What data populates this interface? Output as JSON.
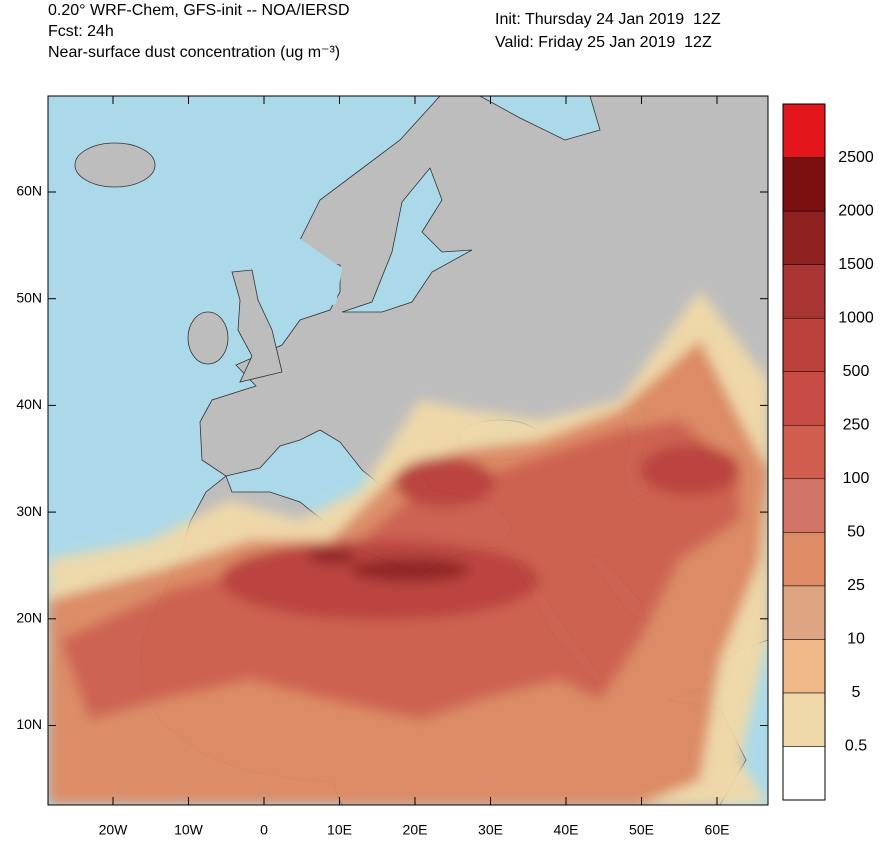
{
  "header": {
    "title": "0.20° WRF-Chem, GFS-init -- NOA/IERSD",
    "forecast": "Fcst: 24h",
    "variable": "Near-surface dust concentration (ug m⁻³)",
    "init": "Init: Thursday 24 Jan 2019  12Z",
    "valid": "Valid: Friday 25 Jan 2019  12Z"
  },
  "map": {
    "lon_ticks": [
      "20W",
      "10W",
      "0",
      "10E",
      "20E",
      "30E",
      "40E",
      "50E",
      "60E"
    ],
    "lat_ticks": [
      "60N",
      "50N",
      "40N",
      "30N",
      "20N",
      "10N"
    ]
  },
  "colorbar": {
    "levels": [
      0.5,
      5,
      10,
      25,
      50,
      100,
      250,
      500,
      1000,
      1500,
      2000,
      2500
    ],
    "colors": [
      "#ffffff",
      "#f0d9a8",
      "#efb98a",
      "#dfa583",
      "#de8a64",
      "#d27466",
      "#cf5e4e",
      "#c94b45",
      "#bb413a",
      "#a83533",
      "#8f2020",
      "#7c0f0f",
      "#e3161b"
    ]
  }
}
